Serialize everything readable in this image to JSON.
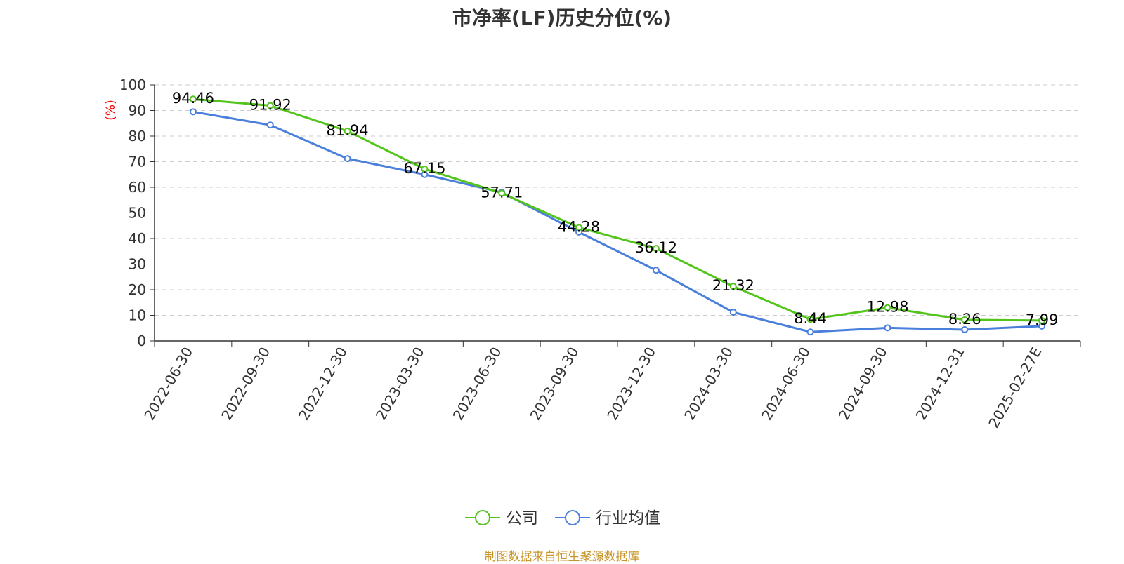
{
  "chart_data": {
    "type": "line",
    "title": "市净率(LF)历史分位(%)",
    "ylabel": "(%)",
    "ylim": [
      0,
      100
    ],
    "yticks": [
      0,
      10,
      20,
      30,
      40,
      50,
      60,
      70,
      80,
      90,
      100
    ],
    "categories": [
      "2022-06-30",
      "2022-09-30",
      "2022-12-30",
      "2023-03-30",
      "2023-06-30",
      "2023-09-30",
      "2023-12-30",
      "2024-03-30",
      "2024-06-30",
      "2024-09-30",
      "2024-12-31",
      "2025-02-27E"
    ],
    "grid": true,
    "legend_position": "bottom",
    "series": [
      {
        "name": "公司",
        "color": "#52c41a",
        "labels_shown": true,
        "values": [
          94.46,
          91.92,
          81.94,
          67.15,
          57.71,
          44.28,
          36.12,
          21.32,
          8.44,
          12.98,
          8.26,
          7.99
        ]
      },
      {
        "name": "行业均值",
        "color": "#4a7fdb",
        "labels_shown": false,
        "values": [
          89.5,
          84.3,
          71.2,
          65.0,
          58.0,
          42.5,
          27.6,
          11.2,
          3.5,
          5.1,
          4.4,
          5.8
        ]
      }
    ]
  },
  "source_note": "制图数据来自恒生聚源数据库"
}
